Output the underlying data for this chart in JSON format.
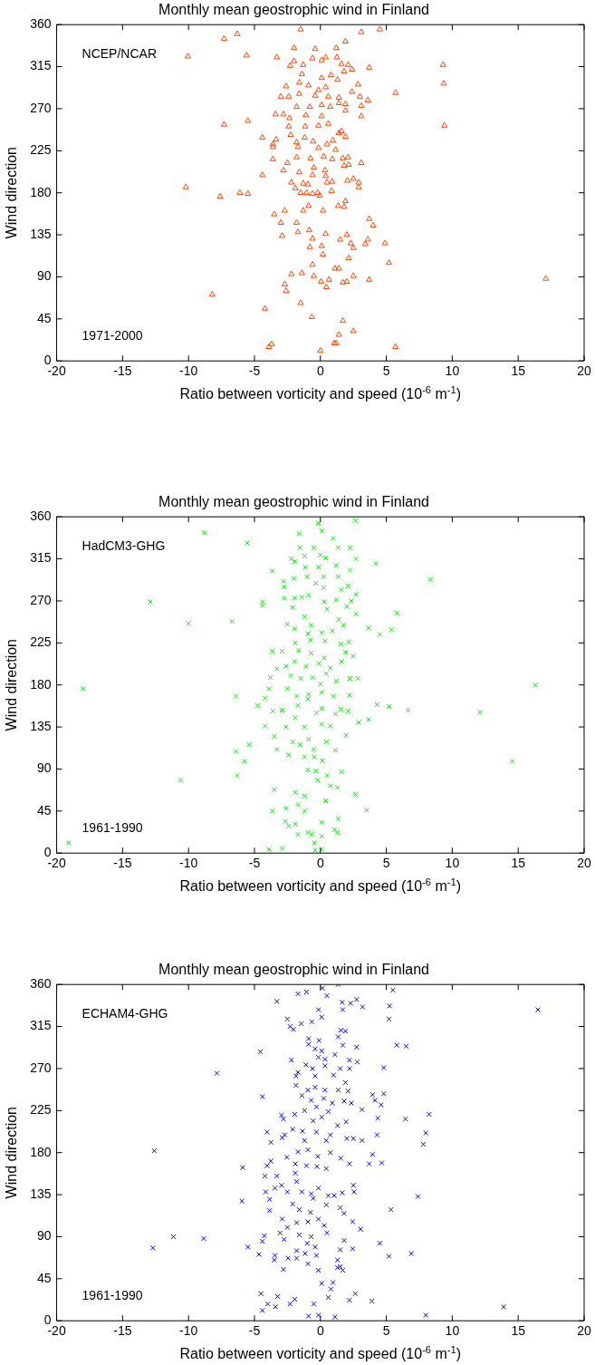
{
  "chart_data": [
    {
      "type": "scatter",
      "title": "Monthly mean geostrophic wind in Finland",
      "xlabel": "Ratio between vorticity and speed (10$^{-6}$ m$^{-1}$)",
      "ylabel": "Wind direction",
      "annotations": [
        "NCEP/NCAR",
        "1971-2000"
      ],
      "marker": "triangle",
      "xlim": [
        -20,
        20
      ],
      "xticks": [
        -20,
        -15,
        -10,
        -5,
        0,
        5,
        10,
        15,
        20
      ],
      "ylim": [
        0,
        360
      ],
      "yticks": [
        0,
        45,
        90,
        135,
        180,
        225,
        270,
        315,
        360
      ],
      "series": [
        {
          "color": "#ff4500",
          "x": [
            -10.05,
            -7.3,
            -6.3,
            -5.6,
            -3.3,
            -1.5,
            3.1,
            4.5,
            1.9,
            -2.0,
            -0.4,
            1.2,
            9.3,
            9.35,
            5.7,
            9.4,
            -7.3,
            -5.5,
            -10.2,
            -7.6,
            -6.1,
            -5.5,
            -4.4,
            -4.4,
            17.1,
            -8.2,
            -4.2,
            -1.5,
            -0.65,
            1.7,
            2.5,
            1.4,
            1.05,
            1.2,
            0,
            5.7,
            -3.9,
            -3.7,
            -3.5,
            -2.7,
            -3.0,
            -1.8,
            -1.3,
            -0.9,
            0.2,
            1.35,
            1.9,
            1.8,
            3.7,
            4.0,
            -2.9,
            -1.7,
            -0.85,
            -0.6,
            0.4,
            1.5,
            2.0,
            2.3,
            2.5,
            3.4,
            3.6,
            4.9,
            -0.8,
            0.1,
            0.2,
            2.15,
            5.2,
            -0.6,
            -2.2,
            -1.4,
            -0.5,
            0.05,
            0.65,
            1.1,
            1.4,
            1.7,
            2.0,
            2.5,
            3.7,
            -2.7,
            -2.6,
            0.45,
            -2.3,
            -2.0,
            -1.3,
            -0.6,
            0.1,
            0.4,
            1.25,
            1.6,
            2.1,
            2.4,
            3.7,
            1.8,
            -1.4,
            0.1,
            0.8,
            1.3,
            -2.6,
            -1.6,
            -0.9,
            -0.15,
            0.4,
            2.85,
            2.4,
            -3.0,
            -2.4,
            -1.6,
            -0.4,
            0.6,
            1.4,
            3.0,
            3.6,
            3.1,
            0.1,
            0.75,
            1.4,
            1.9,
            -1.8,
            -0.8,
            -3.4,
            -2.8,
            -2.35,
            -1.1,
            0.1,
            1.9,
            3.1,
            -2.4,
            -1.15,
            -0.15,
            0.6,
            1.4,
            1.6,
            1.9,
            -3.35,
            -3.6,
            -3.6,
            -2.25,
            -1.8,
            -1.2,
            -0.55,
            -0.15,
            0.5,
            0.95,
            1.15,
            -1.7,
            -3.6,
            -2.5,
            -1.8,
            -0.75,
            0.25,
            0.9,
            1.7,
            2.1,
            3.1,
            1.8,
            2.15,
            -2.8,
            -1.6,
            -0.5,
            0.35,
            -0.6,
            0.4,
            -2.2,
            -1.3,
            -0.95,
            0.5,
            0.9,
            2.05,
            2.5,
            2.9,
            2.9,
            -1.9,
            0.85,
            -1.5,
            -1.05,
            -0.6,
            -0.2,
            -0.05
          ],
          "values": [
            326,
            345,
            350,
            327,
            325,
            355,
            352,
            355,
            342,
            335,
            334,
            335,
            317,
            297,
            287,
            252,
            253,
            257,
            186,
            176,
            180,
            179,
            239,
            199,
            88,
            71,
            56,
            62,
            47,
            43,
            32,
            28,
            19,
            19,
            11,
            15,
            15,
            18,
            157,
            161,
            148,
            148,
            161,
            166,
            161,
            166,
            171,
            165,
            152,
            145,
            134,
            138,
            140,
            131,
            136,
            130,
            135,
            126,
            121,
            125,
            130,
            126,
            122,
            123,
            114,
            110,
            105,
            103,
            93,
            94,
            91,
            85,
            87,
            99,
            99,
            84,
            85,
            91,
            87,
            82,
            75,
            79,
            316,
            321,
            317,
            324,
            322,
            325,
            325,
            318,
            317,
            312,
            314,
            310,
            307,
            303,
            306,
            301,
            294,
            298,
            295,
            290,
            293,
            296,
            288,
            283,
            283,
            286,
            284,
            283,
            282,
            283,
            279,
            273,
            274,
            272,
            276,
            275,
            272,
            272,
            264,
            264,
            260,
            263,
            262,
            268,
            262,
            251,
            251,
            252,
            254,
            244,
            246,
            240,
            237,
            232,
            229,
            242,
            234,
            239,
            235,
            228,
            232,
            236,
            226,
            229,
            216,
            212,
            218,
            217,
            219,
            216,
            217,
            218,
            212,
            209,
            210,
            204,
            202,
            207,
            204,
            199,
            198,
            191,
            190,
            189,
            191,
            192,
            193,
            195,
            191,
            186,
            185,
            182,
            180,
            180,
            179,
            180,
            177
          ]
        }
      ]
    },
    {
      "type": "scatter",
      "title": "Monthly mean geostrophic wind in Finland",
      "xlabel": "Ratio between vorticity and speed (10$^{-6}$ m$^{-1}$)",
      "ylabel": "Wind direction",
      "annotations": [
        "HadCM3-GHG",
        "1961-1990"
      ],
      "marker": "cross",
      "xlim": [
        -20,
        20
      ],
      "xticks": [
        -20,
        -15,
        -10,
        -5,
        0,
        5,
        10,
        15,
        20
      ],
      "ylim": [
        0,
        360
      ],
      "yticks": [
        0,
        45,
        90,
        135,
        180,
        225,
        270,
        315,
        360
      ],
      "series": [
        {
          "color": "#00ee00",
          "x": [
            -19.1,
            -18.0,
            -12.9,
            -10.0,
            -8.8,
            -5.55,
            -6.7,
            -10.6,
            -6.4,
            -6.4,
            -6.3,
            -5.75,
            -5.4,
            -4.75,
            -4.2,
            -4.2,
            -3.65,
            -3.65,
            -4.4,
            -4.4,
            -3.8,
            -3.9,
            -3.6,
            -3.5,
            -3.3,
            -3.5,
            -3.65,
            -3.9,
            -2.9,
            -2.8,
            -2.75,
            -2.75,
            -2.5,
            -2.9,
            -3.3,
            -2.5,
            -2.9,
            -2.6,
            -2.4,
            -2.6,
            -2.65,
            -2.4,
            -1.9,
            -1.7,
            -1.9,
            -1.7,
            -1.2,
            -1.2,
            -0.95,
            -0.65,
            -0.45,
            0.1,
            -0.4,
            0.1,
            0.1,
            0.4,
            1.35,
            1.05,
            1.3,
            0.75,
            1.3,
            2.65,
            3.5,
            -0.2,
            -0.35,
            -0.95,
            0.5,
            1.6,
            -0.45,
            -1.2,
            0.15,
            -2.1,
            -1.55,
            -0.9,
            0.45,
            1.15,
            -0.5,
            1.95,
            2.9,
            3.65,
            0.75,
            -1.2,
            -1.9,
            0.1,
            -0.3,
            0.1,
            1.15,
            1.55,
            2.1,
            4.3,
            5.2,
            6.65,
            12.1,
            14.55,
            16.3,
            8.35,
            5.8,
            5.4,
            4.5,
            4.2,
            3.65,
            2.7,
            2.65,
            -0.15,
            0.1,
            -1.6,
            -1.55,
            -0.5,
            0.95,
            1.35,
            2.25,
            -2.2,
            -1.2,
            0.0,
            0.4,
            -1.95,
            -1.15,
            -0.15,
            1.2,
            2.25,
            -1.0,
            0.25,
            1.35,
            -2.0,
            -0.35,
            0.25,
            2.1,
            2.7,
            1.6,
            -1.95,
            -1.4,
            -0.9,
            0.3,
            1.2,
            2.35,
            -2.1,
            -1.2,
            -0.7,
            0.5,
            2.0,
            2.7,
            1.4,
            1.75,
            -1.95,
            -0.95,
            0.1,
            0.9,
            -1.9,
            -0.75,
            0.35,
            1.55,
            2.15,
            -1.65,
            -0.7,
            0.3,
            1.9,
            2.5,
            -1.95,
            -1.1,
            -0.1,
            0.75,
            1.6,
            -2.6,
            -2.25,
            -1.5,
            -0.6,
            0.45,
            1.2,
            2.25,
            2.85,
            -1.8,
            -0.95,
            0.1,
            1.0,
            2.2,
            -1.7,
            -0.9,
            0.0
          ],
          "values": [
            11,
            176,
            269,
            246,
            343,
            332,
            248,
            78,
            168,
            109,
            83,
            98,
            116,
            158,
            166,
            136,
            216,
            302,
            269,
            265,
            188,
            176,
            152,
            125,
            111,
            68,
            45,
            4,
            5,
            291,
            285,
            273,
            245,
            216,
            197,
            176,
            153,
            135,
            105,
            48,
            34,
            29,
            31,
            20,
            65,
            52,
            45,
            61,
            22,
            20,
            11,
            4,
            3,
            33,
            18,
            56,
            37,
            25,
            22,
            72,
            70,
            63,
            46,
            78,
            88,
            89,
            83,
            87,
            103,
            103,
            99,
            119,
            116,
            122,
            119,
            110,
            111,
            126,
            140,
            143,
            136,
            135,
            145,
            138,
            150,
            155,
            149,
            154,
            152,
            159,
            157,
            153,
            151,
            98,
            180,
            293,
            257,
            239,
            234,
            310,
            241,
            315,
            356,
            353,
            345,
            342,
            327,
            327,
            337,
            327,
            327,
            315,
            318,
            319,
            316,
            312,
            306,
            306,
            308,
            303,
            296,
            296,
            296,
            294,
            289,
            284,
            286,
            277,
            282,
            273,
            274,
            276,
            269,
            271,
            270,
            263,
            253,
            244,
            261,
            264,
            256,
            250,
            244,
            240,
            235,
            236,
            238,
            225,
            228,
            227,
            224,
            226,
            217,
            214,
            209,
            215,
            211,
            205,
            200,
            203,
            198,
            205,
            200,
            190,
            187,
            188,
            192,
            184,
            187,
            187,
            168,
            165,
            172,
            168,
            169,
            158,
            170,
            181
          ]
        }
      ]
    },
    {
      "type": "scatter",
      "title": "Monthly mean geostrophic wind in Finland",
      "xlabel": "Ratio between vorticity and speed (10$^{-6}$ m$^{-1}$)",
      "ylabel": "Wind direction",
      "annotations": [
        "ECHAM4-GHG",
        "1961-1990"
      ],
      "marker": "cross",
      "xlim": [
        -20,
        20
      ],
      "xticks": [
        -20,
        -15,
        -10,
        -5,
        0,
        5,
        10,
        15,
        20
      ],
      "ylim": [
        0,
        360
      ],
      "yticks": [
        0,
        45,
        90,
        135,
        180,
        225,
        270,
        315,
        360
      ],
      "series": [
        {
          "color": "#0000ff",
          "x": [
            16.5,
            -7.85,
            -12.6,
            -12.7,
            -11.15,
            -8.85,
            -5.9,
            -5.95,
            -5.5,
            -4.55,
            -4.4,
            -4.65,
            -4.4,
            -4.25,
            -4.5,
            -4.4,
            -4.0,
            -3.4,
            -3.25,
            -2.3,
            -1.95,
            -0.9,
            -0.15,
            -0.5,
            0.1,
            0.95,
            0.6,
            0.8,
            1.1,
            2.2,
            2.65,
            3.9,
            8.0,
            13.9,
            -3.3,
            -1.7,
            -1.05,
            0.15,
            0.5,
            1.35,
            5.5,
            5.25,
            5.2,
            1.65,
            1.7,
            2.3,
            2.75,
            3.2,
            -0.15,
            0.1,
            -0.65,
            -2.5,
            -2.3,
            -2.05,
            -1.45,
            1.55,
            1.9,
            1.35,
            1.7,
            2.75,
            5.8,
            6.5,
            -0.9,
            -0.1,
            -0.9,
            -0.4,
            0.1,
            0.35,
            -0.15,
            -2.2,
            1.1,
            2.2,
            2.8,
            -1.1,
            -0.6,
            0.35,
            1.5,
            2.2,
            4.8,
            -1.7,
            -1.85,
            -0.4,
            -1.85,
            1.0,
            1.9,
            -0.95,
            -0.4,
            0.35,
            1.35,
            2.1,
            3.95,
            4.8,
            -1.4,
            -0.7,
            0.25,
            0.9,
            1.8,
            2.35,
            4.15,
            4.6,
            -1.2,
            -0.3,
            0.6,
            3.15,
            8.25,
            6.45,
            4.35,
            -2.95,
            -1.95,
            -2.8,
            -0.55,
            0.1,
            1.3,
            1.95,
            -2.1,
            -1.35,
            -0.3,
            0.75,
            -4.05,
            -2.7,
            -2.9,
            -3.75,
            -1.2,
            0.45,
            2.0,
            2.5,
            3.15,
            4.3,
            8.0,
            7.8,
            -1.7,
            -0.95,
            0.75,
            -2.55,
            -0.2,
            1.55,
            2.2,
            3.95,
            3.7,
            4.65,
            -3.75,
            -4.05,
            -1.9,
            -1.05,
            -0.25,
            0.45,
            -4.2,
            -3.3,
            -1.9,
            -1.8,
            -3.45,
            -2.95,
            -2.5,
            -1.4,
            -0.7,
            -0.15,
            0.6,
            1.05,
            1.65,
            2.5,
            2.55,
            7.4,
            -4.15,
            -3.85,
            -2.1,
            -0.55,
            0.45,
            1.5,
            1.8,
            5.35,
            -3.85,
            -2.9,
            -1.6,
            -0.75,
            -2.5,
            -1.8,
            -0.95,
            -0.15,
            0.3,
            2.45,
            3.05,
            -3.05,
            -1.6,
            -0.7,
            0.5,
            -2.75,
            -1.0,
            -0.4,
            1.8,
            1.5,
            2.45,
            4.5,
            6.9,
            5.2,
            -1.8,
            -1.15,
            -0.3,
            -2.45,
            -1.8,
            -3.5,
            -3.45,
            -0.95,
            -2.8,
            -0.15,
            1.3,
            1.5,
            1.7,
            1.3
          ],
          "values": [
            333,
            265,
            182,
            78,
            90,
            88,
            164,
            128,
            79,
            288,
            240,
            71,
            85,
            91,
            29,
            11,
            18,
            15,
            26,
            18,
            23,
            5,
            6,
            18,
            40,
            41,
            25,
            34,
            4,
            22,
            29,
            21,
            6,
            15,
            342,
            350,
            352,
            356,
            348,
            360,
            354,
            337,
            323,
            341,
            333,
            340,
            344,
            336,
            333,
            325,
            320,
            323,
            315,
            312,
            318,
            311,
            310,
            304,
            295,
            293,
            295,
            294,
            302,
            300,
            296,
            291,
            289,
            280,
            282,
            279,
            285,
            279,
            277,
            274,
            270,
            273,
            270,
            270,
            271,
            266,
            262,
            262,
            252,
            263,
            255,
            247,
            250,
            247,
            247,
            246,
            242,
            243,
            241,
            236,
            238,
            233,
            235,
            233,
            236,
            231,
            225,
            229,
            224,
            226,
            221,
            216,
            217,
            220,
            221,
            216,
            214,
            218,
            209,
            213,
            205,
            203,
            202,
            199,
            202,
            199,
            196,
            191,
            193,
            193,
            195,
            195,
            193,
            199,
            201,
            189,
            181,
            183,
            180,
            175,
            176,
            174,
            168,
            178,
            168,
            169,
            171,
            166,
            168,
            166,
            165,
            163,
            155,
            155,
            158,
            149,
            142,
            145,
            138,
            138,
            136,
            142,
            134,
            134,
            137,
            145,
            138,
            133,
            138,
            130,
            125,
            131,
            124,
            121,
            115,
            119,
            118,
            109,
            119,
            116,
            100,
            105,
            106,
            109,
            102,
            106,
            98,
            94,
            92,
            90,
            94,
            87,
            83,
            79,
            86,
            76,
            77,
            83,
            72,
            69,
            75,
            72,
            70,
            67,
            67,
            65,
            70,
            61,
            55,
            54,
            65,
            58,
            54,
            57
          ]
        }
      ]
    }
  ]
}
